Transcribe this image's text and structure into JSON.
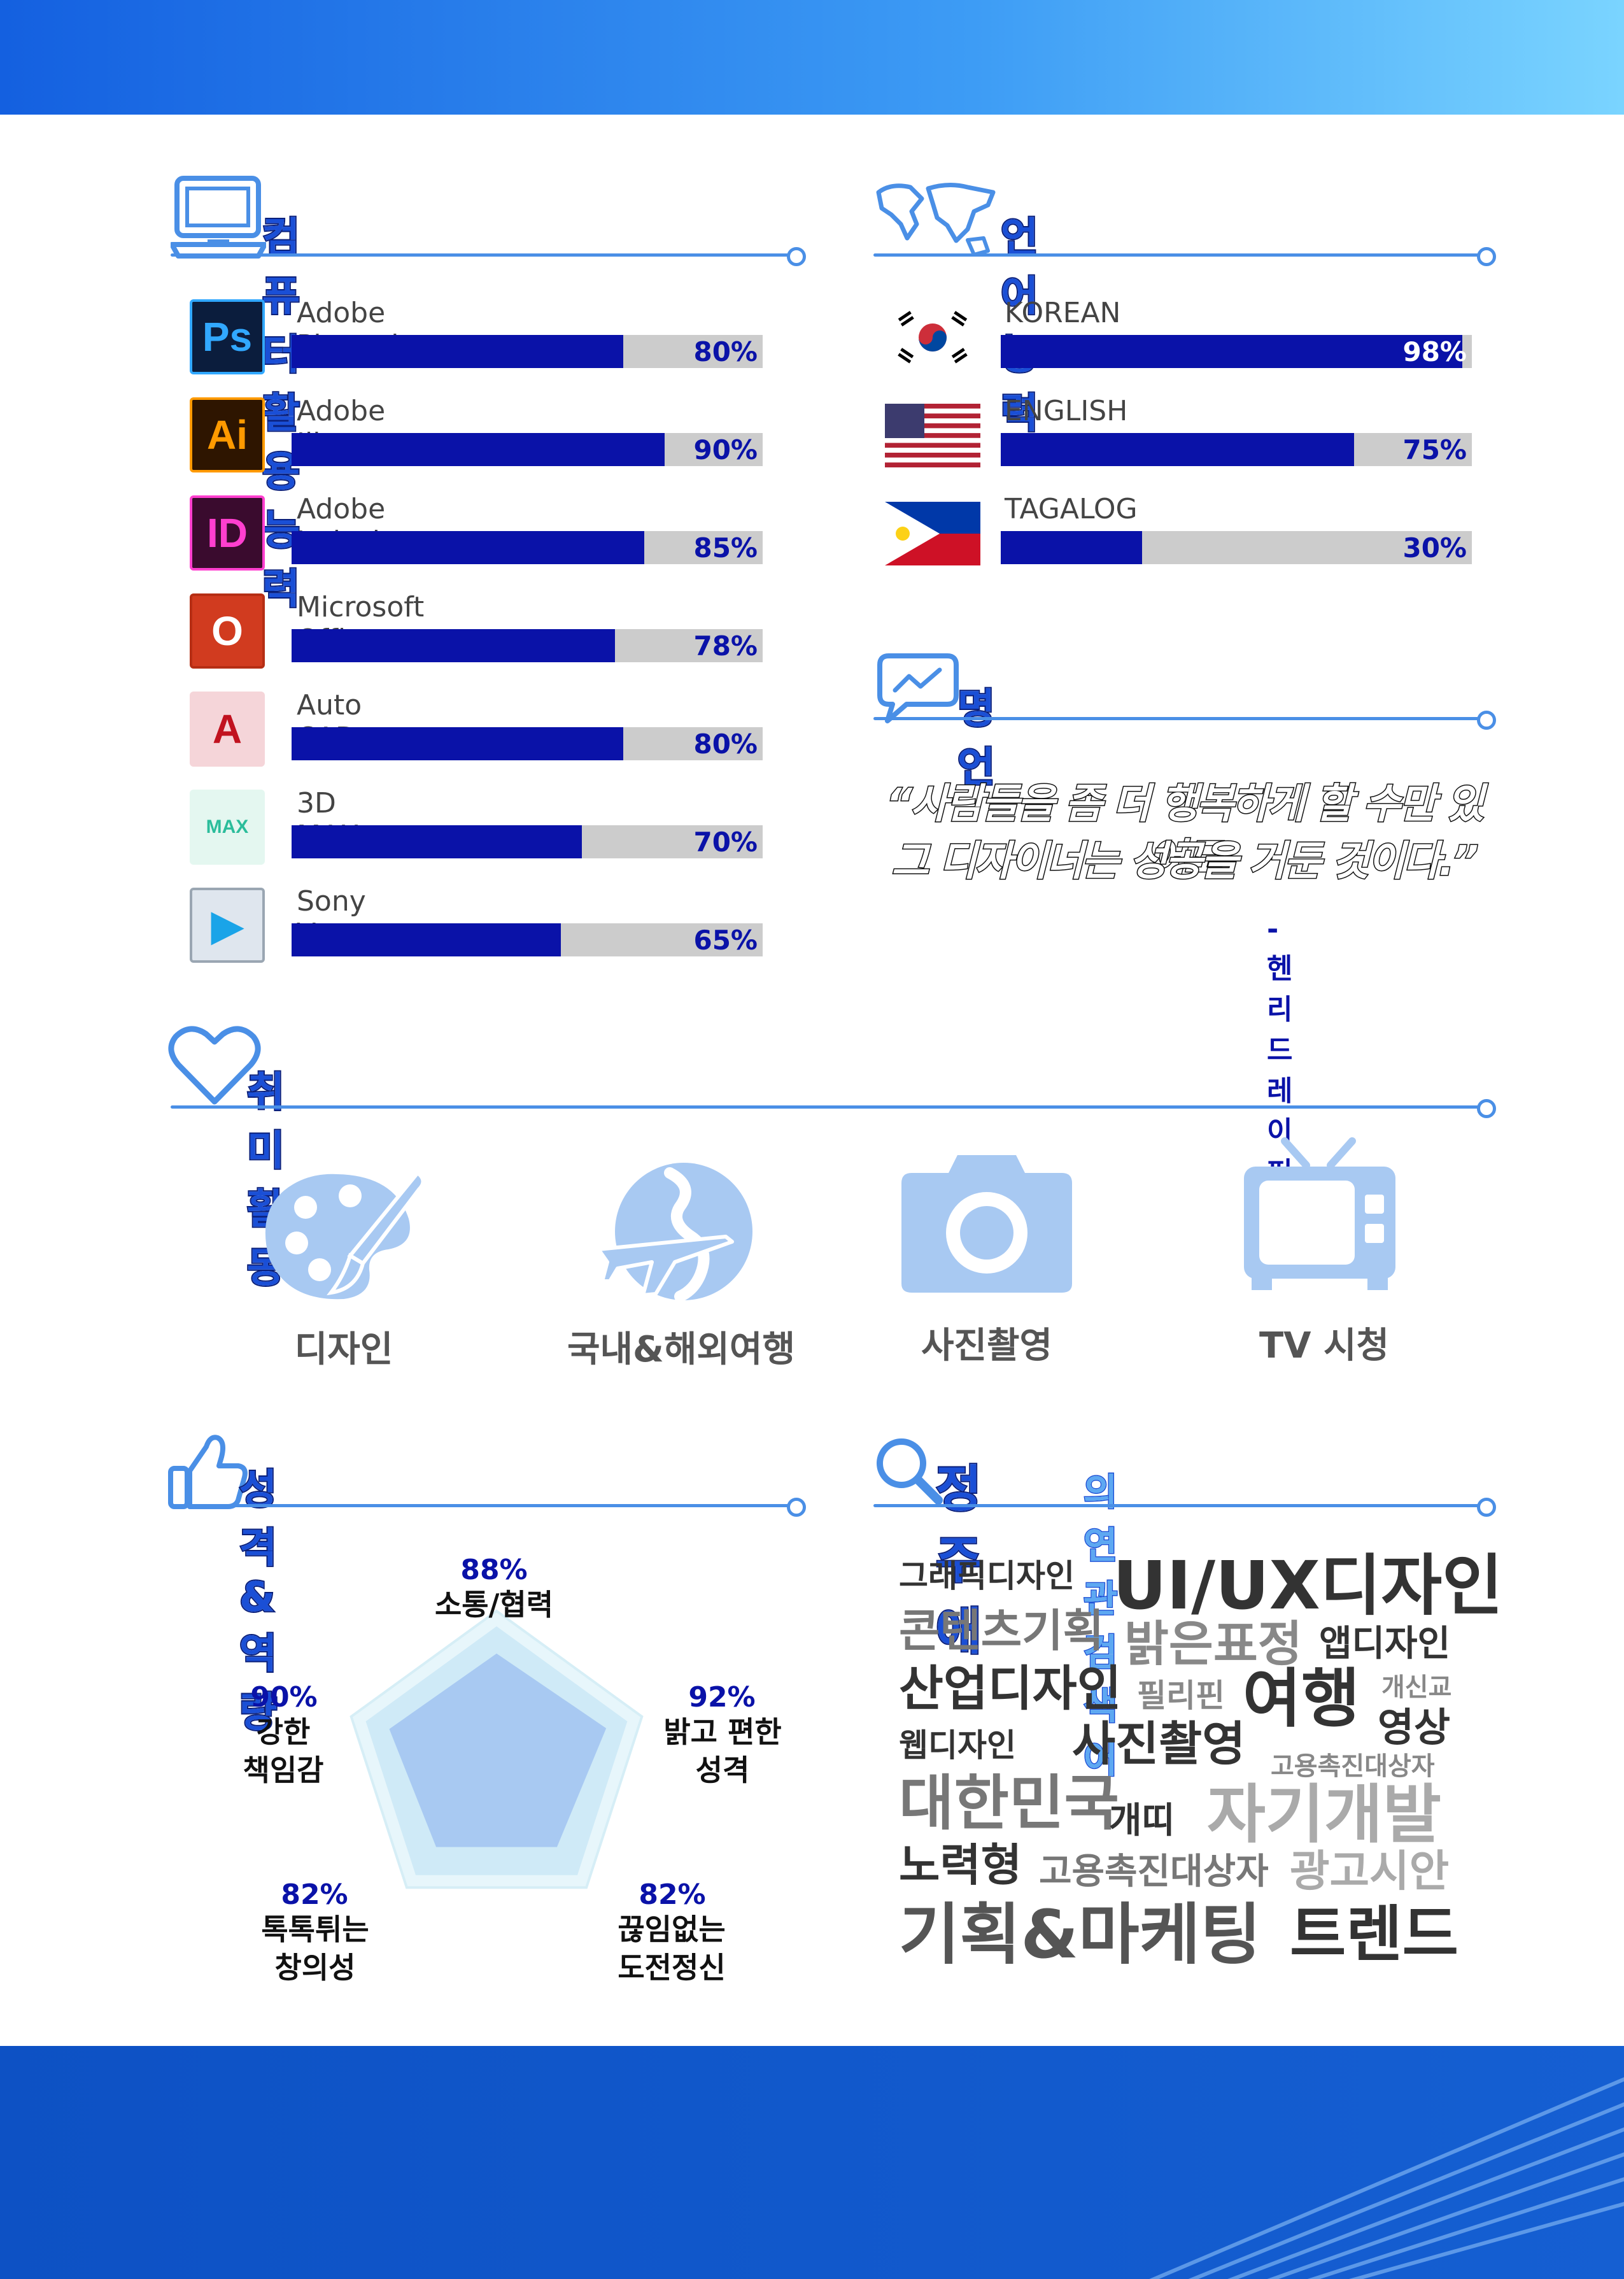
{
  "colors": {
    "accent": "#1a4fd6",
    "bar_fill": "#0a12a8",
    "bar_track": "#cccccc",
    "line": "#4a8fe6"
  },
  "computer_skills": {
    "title": "컴퓨터 활용능력",
    "items": [
      {
        "icon": "photoshop-icon",
        "icon_text": "Ps",
        "name": "Adobe Photoshop",
        "value": 80,
        "pct": "80%"
      },
      {
        "icon": "illustrator-icon",
        "icon_text": "Ai",
        "name": "Adobe Illustrator",
        "value": 90,
        "pct": "90%"
      },
      {
        "icon": "indesign-icon",
        "icon_text": "ID",
        "name": "Adobe Indesign",
        "value": 85,
        "pct": "85%"
      },
      {
        "icon": "office-icon",
        "icon_text": "O",
        "name": "Microsoft Office",
        "value": 78,
        "pct": "78%"
      },
      {
        "icon": "autocad-icon",
        "icon_text": "A",
        "name": "Auto CAD",
        "value": 80,
        "pct": "80%"
      },
      {
        "icon": "3dsmax-icon",
        "icon_text": "MAX",
        "name": "3D MAX",
        "value": 70,
        "pct": "70%"
      },
      {
        "icon": "sony-vegas-icon",
        "icon_text": "▶",
        "name": "Sony Vegas",
        "value": 65,
        "pct": "65%"
      }
    ]
  },
  "languages": {
    "title": "언어능력",
    "items": [
      {
        "icon": "korea-flag-icon",
        "name": "KOREAN",
        "value": 98,
        "pct": "98%"
      },
      {
        "icon": "usa-flag-icon",
        "name": "ENGLISH",
        "value": 75,
        "pct": "75%"
      },
      {
        "icon": "philippines-flag-icon",
        "name": "TAGALOG",
        "value": 30,
        "pct": "30%"
      }
    ]
  },
  "quote": {
    "title": "명언",
    "line1": "“사람들을 좀 더 행복하게 할 수만 있어도",
    "line2": "그 디자이너는 성공을 거둔 것이다.”",
    "author": "- 헨리 드레이퍼스"
  },
  "hobbies": {
    "title": "취미활동",
    "items": [
      {
        "icon": "palette-icon",
        "label": "디자인"
      },
      {
        "icon": "globe-plane-icon",
        "label": "국내&해외여행"
      },
      {
        "icon": "camera-icon",
        "label": "사진촬영"
      },
      {
        "icon": "tv-icon",
        "label": "TV 시청"
      }
    ]
  },
  "personality": {
    "title": "성격 & 역량",
    "items": [
      {
        "pct": "88%",
        "value": 88,
        "label": "소통/협력"
      },
      {
        "pct": "92%",
        "value": 92,
        "label": "밝고 편한\n성격"
      },
      {
        "pct": "82%",
        "value": 82,
        "label": "끊임없는\n도전정신"
      },
      {
        "pct": "82%",
        "value": 82,
        "label": "톡톡튀는\n창의성"
      },
      {
        "pct": "90%",
        "value": 90,
        "label": "강한\n책임감"
      }
    ]
  },
  "search_words": {
    "title_name": "정주애",
    "title_rest": "의 연관 검색어",
    "words": [
      "그래픽디자인",
      "UI/UX디자인",
      "콘텐츠기획",
      "밝은표정",
      "앱디자인",
      "산업디자인",
      "필리핀",
      "여행",
      "개신교",
      "웹디자인",
      "사진촬영",
      "영상",
      "고용촉진대상자",
      "대한민국",
      "개띠",
      "자기개발",
      "노력형",
      "고용촉진대상자",
      "광고시안",
      "기획&마케팅",
      "트렌드"
    ]
  }
}
